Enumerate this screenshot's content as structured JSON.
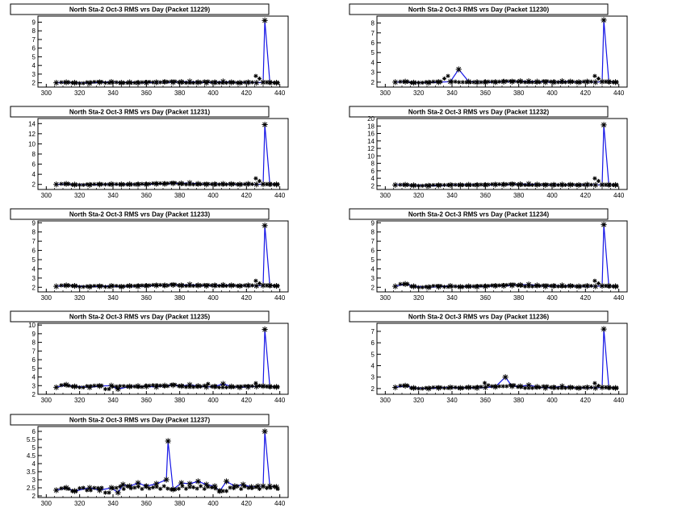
{
  "chart_data": [
    {
      "type": "line",
      "title": "North Sta-2 Oct-3 RMS vrs Day (Packet 11229)",
      "xlim": [
        295,
        445
      ],
      "ylim": [
        1.5,
        9.7
      ],
      "xticks": [
        300,
        320,
        340,
        360,
        380,
        400,
        420,
        440
      ],
      "yticks": [
        2,
        3,
        4,
        5,
        6,
        7,
        8,
        9
      ],
      "series": [
        {
          "x": [
            306,
            312,
            317,
            326,
            332,
            339,
            345,
            350,
            355,
            360,
            366,
            371,
            376,
            381,
            386,
            391,
            396,
            401,
            406,
            411,
            416,
            421,
            426,
            430,
            431,
            434,
            438
          ],
          "y": [
            2.0,
            2.05,
            2.0,
            1.95,
            2.05,
            2.1,
            2.0,
            2.05,
            2.0,
            2.0,
            2.05,
            2.1,
            2.05,
            2.1,
            2.15,
            2.05,
            2.0,
            2.05,
            2.15,
            2.05,
            2.0,
            2.05,
            2.0,
            2.05,
            9.2,
            2.05,
            2.0
          ]
        }
      ]
    },
    {
      "type": "line",
      "title": "North Sta-2 Oct-3 RMS vrs Day (Packet 11230)",
      "xlim": [
        295,
        445
      ],
      "ylim": [
        1.5,
        8.7
      ],
      "xticks": [
        300,
        320,
        340,
        360,
        380,
        400,
        420,
        440
      ],
      "yticks": [
        2,
        3,
        4,
        5,
        6,
        7,
        8
      ],
      "series": [
        {
          "x": [
            306,
            312,
            317,
            326,
            332,
            339,
            344,
            350,
            355,
            360,
            366,
            371,
            376,
            381,
            386,
            391,
            396,
            401,
            406,
            411,
            416,
            421,
            426,
            430,
            431,
            434,
            438
          ],
          "y": [
            2.0,
            2.05,
            1.95,
            1.95,
            2.0,
            2.05,
            3.3,
            2.05,
            2.0,
            2.0,
            2.0,
            2.05,
            2.05,
            2.1,
            2.1,
            2.05,
            2.0,
            2.0,
            2.1,
            2.05,
            2.0,
            2.05,
            2.0,
            2.05,
            8.3,
            2.05,
            2.0
          ]
        }
      ]
    },
    {
      "type": "line",
      "title": "North Sta-2 Oct-3 RMS vrs Day (Packet 11231)",
      "xlim": [
        295,
        445
      ],
      "ylim": [
        1.0,
        15.0
      ],
      "xticks": [
        300,
        320,
        340,
        360,
        380,
        400,
        420,
        440
      ],
      "yticks": [
        2,
        4,
        6,
        8,
        10,
        12,
        14
      ],
      "series": [
        {
          "x": [
            306,
            312,
            317,
            326,
            332,
            339,
            345,
            350,
            355,
            360,
            366,
            371,
            376,
            381,
            386,
            391,
            396,
            401,
            406,
            411,
            416,
            421,
            426,
            430,
            431,
            434,
            438
          ],
          "y": [
            2.0,
            2.1,
            1.95,
            1.9,
            2.0,
            2.05,
            2.0,
            2.05,
            2.0,
            2.0,
            2.1,
            2.1,
            2.2,
            2.2,
            2.3,
            2.1,
            2.0,
            2.05,
            2.1,
            2.05,
            2.0,
            2.1,
            2.0,
            2.05,
            13.8,
            2.05,
            2.0
          ]
        }
      ]
    },
    {
      "type": "line",
      "title": "North Sta-2 Oct-3 RMS vrs Day (Packet 11232)",
      "xlim": [
        295,
        445
      ],
      "ylim": [
        1.0,
        20.0
      ],
      "xticks": [
        300,
        320,
        340,
        360,
        380,
        400,
        420,
        440
      ],
      "yticks": [
        2,
        4,
        6,
        8,
        10,
        12,
        14,
        16,
        18,
        20
      ],
      "series": [
        {
          "x": [
            306,
            312,
            317,
            326,
            332,
            339,
            345,
            350,
            355,
            360,
            366,
            371,
            376,
            381,
            386,
            391,
            396,
            401,
            406,
            411,
            416,
            421,
            426,
            430,
            431,
            434,
            438
          ],
          "y": [
            2.2,
            2.25,
            2.1,
            2.0,
            2.1,
            2.2,
            2.2,
            2.25,
            2.2,
            2.2,
            2.3,
            2.3,
            2.4,
            2.4,
            2.5,
            2.3,
            2.2,
            2.25,
            2.3,
            2.25,
            2.2,
            2.3,
            2.2,
            2.25,
            18.3,
            2.25,
            2.2
          ]
        }
      ]
    },
    {
      "type": "line",
      "title": "North Sta-2 Oct-3 RMS vrs Day (Packet 11233)",
      "xlim": [
        295,
        445
      ],
      "ylim": [
        1.5,
        9.2
      ],
      "xticks": [
        300,
        320,
        340,
        360,
        380,
        400,
        420,
        440
      ],
      "yticks": [
        2,
        3,
        4,
        5,
        6,
        7,
        8,
        9
      ],
      "series": [
        {
          "x": [
            306,
            312,
            317,
            326,
            332,
            339,
            345,
            350,
            355,
            360,
            366,
            371,
            376,
            381,
            386,
            391,
            396,
            401,
            406,
            411,
            416,
            421,
            426,
            430,
            431,
            434,
            438
          ],
          "y": [
            2.1,
            2.2,
            2.15,
            2.05,
            2.1,
            2.15,
            2.05,
            2.15,
            2.1,
            2.15,
            2.2,
            2.2,
            2.25,
            2.2,
            2.3,
            2.2,
            2.15,
            2.2,
            2.25,
            2.2,
            2.15,
            2.2,
            2.15,
            2.2,
            8.7,
            2.2,
            2.15
          ]
        }
      ]
    },
    {
      "type": "line",
      "title": "North Sta-2 Oct-3 RMS vrs Day (Packet 11234)",
      "xlim": [
        295,
        445
      ],
      "ylim": [
        1.5,
        9.2
      ],
      "xticks": [
        300,
        320,
        340,
        360,
        380,
        400,
        420,
        440
      ],
      "yticks": [
        2,
        3,
        4,
        5,
        6,
        7,
        8,
        9
      ],
      "series": [
        {
          "x": [
            306,
            312,
            317,
            326,
            332,
            339,
            345,
            350,
            355,
            360,
            366,
            371,
            376,
            381,
            386,
            391,
            396,
            401,
            406,
            411,
            416,
            421,
            426,
            430,
            431,
            434,
            438
          ],
          "y": [
            2.1,
            2.35,
            2.1,
            2.0,
            2.05,
            2.15,
            2.05,
            2.1,
            2.05,
            2.1,
            2.15,
            2.15,
            2.2,
            2.25,
            2.3,
            2.2,
            2.1,
            2.15,
            2.2,
            2.15,
            2.1,
            2.15,
            2.1,
            2.15,
            8.8,
            2.15,
            2.1
          ]
        }
      ]
    },
    {
      "type": "line",
      "title": "North Sta-2 Oct-3 RMS vrs Day (Packet 11235)",
      "xlim": [
        295,
        445
      ],
      "ylim": [
        2.0,
        10.2
      ],
      "xticks": [
        300,
        320,
        340,
        360,
        380,
        400,
        420,
        440
      ],
      "yticks": [
        2,
        3,
        4,
        5,
        6,
        7,
        8,
        9,
        10
      ],
      "series": [
        {
          "x": [
            306,
            312,
            317,
            326,
            332,
            339,
            343,
            350,
            355,
            360,
            366,
            371,
            376,
            381,
            386,
            391,
            396,
            401,
            406,
            411,
            416,
            421,
            426,
            430,
            431,
            434,
            438
          ],
          "y": [
            2.8,
            3.1,
            2.9,
            2.8,
            2.95,
            3.0,
            2.6,
            2.9,
            2.95,
            2.9,
            2.85,
            3.0,
            3.05,
            2.95,
            3.1,
            2.95,
            2.85,
            2.9,
            3.2,
            2.9,
            2.8,
            2.85,
            2.9,
            2.95,
            9.5,
            2.9,
            2.85
          ]
        }
      ]
    },
    {
      "type": "line",
      "title": "North Sta-2 Oct-3 RMS vrs Day (Packet 11236)",
      "xlim": [
        295,
        445
      ],
      "ylim": [
        1.5,
        7.7
      ],
      "xticks": [
        300,
        320,
        340,
        360,
        380,
        400,
        420,
        440
      ],
      "yticks": [
        2,
        3,
        4,
        5,
        6,
        7
      ],
      "series": [
        {
          "x": [
            306,
            312,
            317,
            326,
            332,
            339,
            345,
            350,
            355,
            360,
            366,
            372,
            376,
            381,
            386,
            391,
            396,
            401,
            406,
            411,
            416,
            421,
            426,
            430,
            431,
            434,
            438
          ],
          "y": [
            2.1,
            2.25,
            2.05,
            2.0,
            2.05,
            2.1,
            2.05,
            2.1,
            2.05,
            2.1,
            2.15,
            3.0,
            2.2,
            2.2,
            2.3,
            2.15,
            2.05,
            2.1,
            2.2,
            2.1,
            2.05,
            2.1,
            2.05,
            2.1,
            7.2,
            2.1,
            2.05
          ]
        }
      ]
    },
    {
      "type": "line",
      "title": "North Sta-2 Oct-3 RMS vrs Day (Packet 11237)",
      "xlim": [
        295,
        445
      ],
      "ylim": [
        1.9,
        6.3
      ],
      "xticks": [
        300,
        320,
        340,
        360,
        380,
        400,
        420,
        440
      ],
      "yticks": [
        2,
        2.5,
        3,
        3.5,
        4,
        4.5,
        5,
        5.5,
        6
      ],
      "series": [
        {
          "x": [
            306,
            312,
            317,
            326,
            332,
            339,
            343,
            346,
            350,
            355,
            360,
            366,
            372,
            373,
            376,
            381,
            386,
            391,
            396,
            401,
            404,
            408,
            413,
            418,
            423,
            427,
            430,
            431,
            434,
            438
          ],
          "y": [
            2.35,
            2.5,
            2.3,
            2.5,
            2.35,
            2.5,
            2.2,
            2.7,
            2.6,
            2.8,
            2.6,
            2.75,
            3.0,
            5.4,
            2.4,
            2.8,
            2.75,
            2.9,
            2.7,
            2.6,
            2.3,
            2.9,
            2.6,
            2.7,
            2.55,
            2.6,
            2.6,
            6.0,
            2.6,
            2.55
          ]
        }
      ]
    }
  ]
}
